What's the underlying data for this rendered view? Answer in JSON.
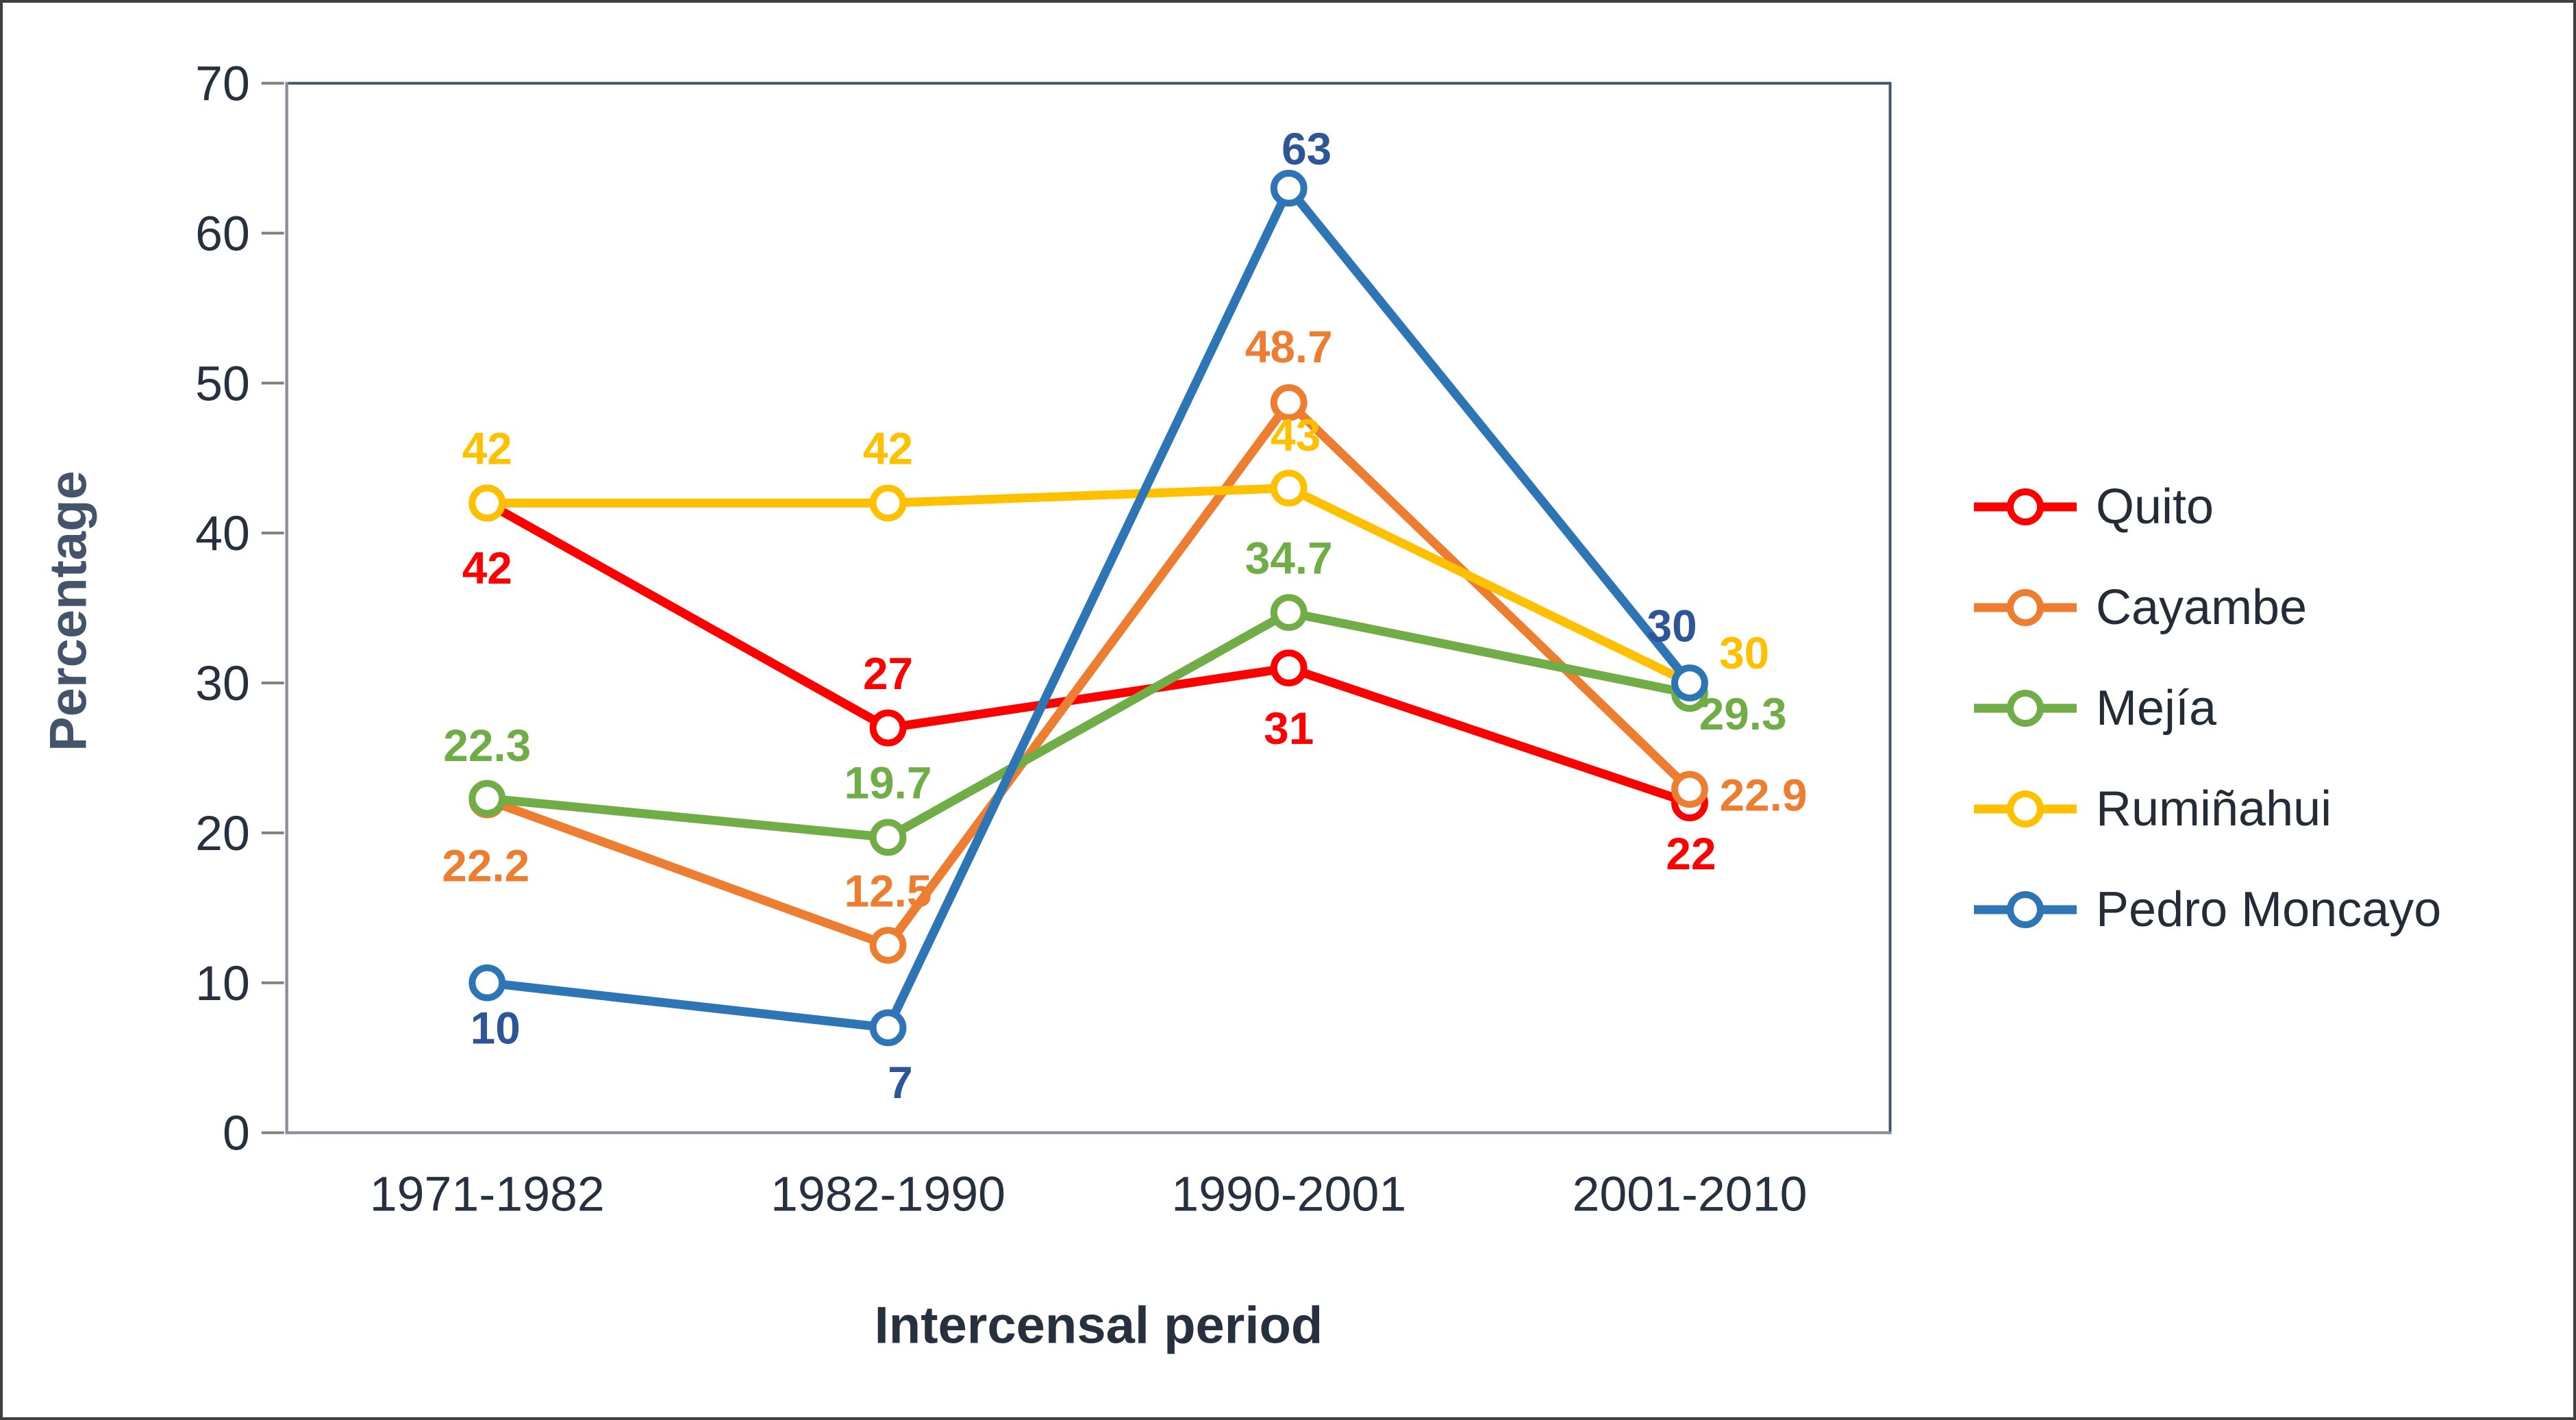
{
  "chart_data": {
    "type": "line",
    "title": "",
    "xlabel": "Intercensal period",
    "ylabel": "Percentage",
    "categories": [
      "1971-1982",
      "1982-1990",
      "1990-2001",
      "2001-2010"
    ],
    "ylim": [
      0,
      70
    ],
    "yticks": [
      0,
      10,
      20,
      30,
      40,
      50,
      60,
      70
    ],
    "grid": false,
    "legend_position": "right",
    "marker": "open-circle",
    "series": [
      {
        "name": "Quito",
        "color": "#FF0000",
        "label_color": "#FF0000",
        "values": [
          42,
          27,
          31,
          22
        ],
        "labels": [
          "42",
          "27",
          "31",
          "22"
        ]
      },
      {
        "name": "Cayambe",
        "color": "#ED7D31",
        "label_color": "#ED7D31",
        "values": [
          22.2,
          12.5,
          48.7,
          22.9
        ],
        "labels": [
          "22.2",
          "12.5",
          "48.7",
          "22.9"
        ]
      },
      {
        "name": "Mejía",
        "color": "#70AD47",
        "label_color": "#70AD47",
        "values": [
          22.3,
          19.7,
          34.7,
          29.3
        ],
        "labels": [
          "22.3",
          "19.7",
          "34.7",
          "29.3"
        ]
      },
      {
        "name": "Rumiñahui",
        "color": "#FFC000",
        "label_color": "#FFC000",
        "values": [
          42,
          42,
          43,
          30
        ],
        "labels": [
          "42",
          "42",
          "43",
          "30"
        ]
      },
      {
        "name": "Pedro Moncayo",
        "color": "#2E75B6",
        "label_color": "#2E5596",
        "values": [
          10,
          7,
          63,
          30
        ],
        "labels": [
          "10",
          "7",
          "63",
          "30"
        ]
      }
    ]
  }
}
